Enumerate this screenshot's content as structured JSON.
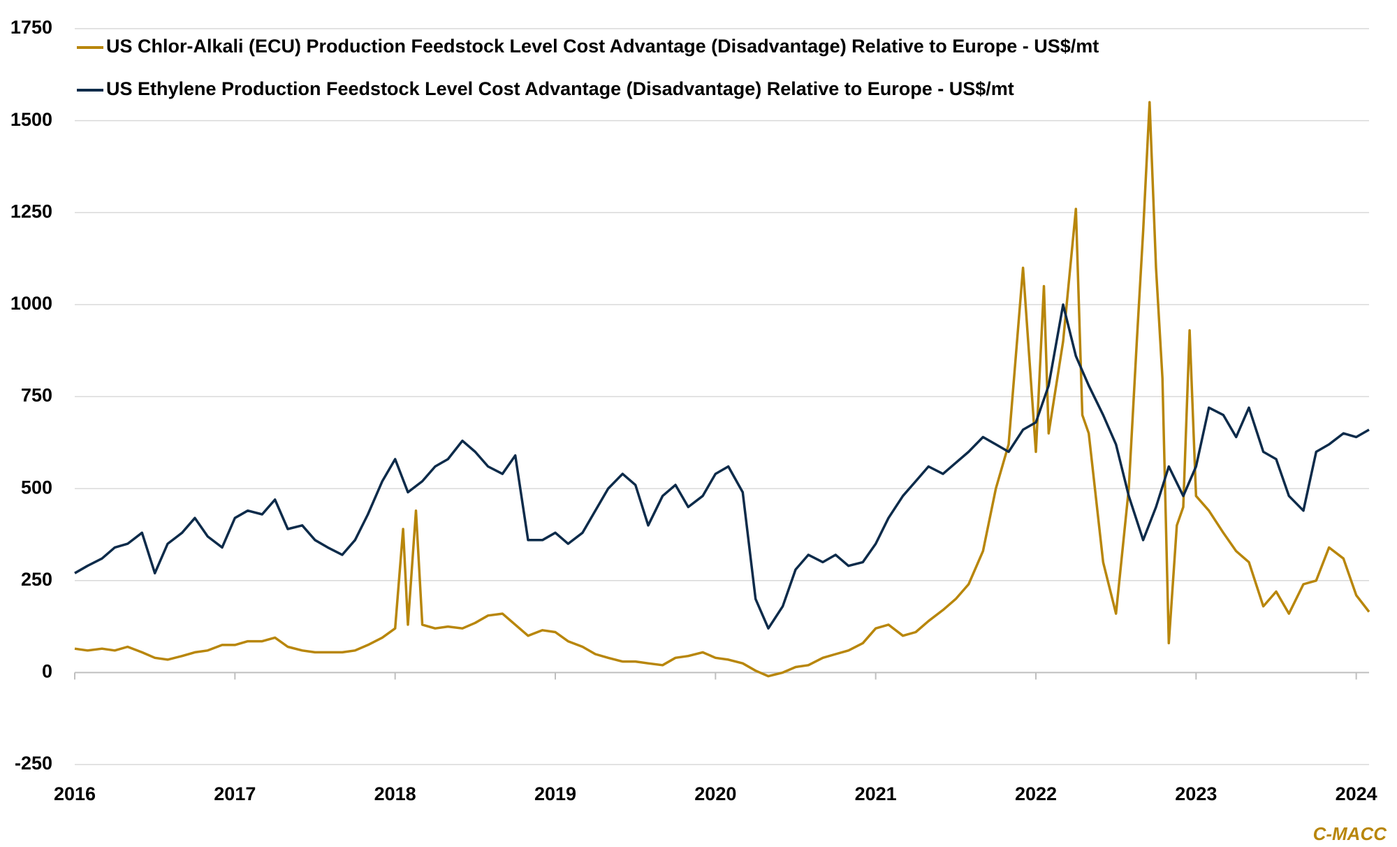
{
  "chart_data": {
    "type": "line",
    "source": "C-MACC",
    "xlim": [
      2016,
      2024.08
    ],
    "xticks": [
      2016,
      2017,
      2018,
      2019,
      2020,
      2021,
      2022,
      2023,
      2024
    ],
    "ylim": [
      -250,
      1750
    ],
    "yticks": [
      -250,
      0,
      250,
      500,
      750,
      1000,
      1250,
      1500,
      1750
    ],
    "grid": true,
    "legend": "top-left",
    "series": [
      {
        "name": "US Chlor-Alkali (ECU) Production Feedstock Level Cost Advantage (Disadvantage) Relative to Europe - US$/mt",
        "color": "#b8860b",
        "x": [
          2016.0,
          2016.08,
          2016.17,
          2016.25,
          2016.33,
          2016.42,
          2016.5,
          2016.58,
          2016.67,
          2016.75,
          2016.83,
          2016.92,
          2017.0,
          2017.08,
          2017.17,
          2017.25,
          2017.33,
          2017.42,
          2017.5,
          2017.58,
          2017.67,
          2017.75,
          2017.83,
          2017.92,
          2018.0,
          2018.05,
          2018.08,
          2018.13,
          2018.17,
          2018.25,
          2018.33,
          2018.42,
          2018.5,
          2018.58,
          2018.67,
          2018.75,
          2018.83,
          2018.92,
          2019.0,
          2019.08,
          2019.17,
          2019.25,
          2019.33,
          2019.42,
          2019.5,
          2019.58,
          2019.67,
          2019.75,
          2019.83,
          2019.92,
          2020.0,
          2020.08,
          2020.17,
          2020.25,
          2020.33,
          2020.42,
          2020.5,
          2020.58,
          2020.67,
          2020.75,
          2020.83,
          2020.92,
          2021.0,
          2021.08,
          2021.17,
          2021.25,
          2021.33,
          2021.42,
          2021.5,
          2021.58,
          2021.67,
          2021.75,
          2021.83,
          2021.92,
          2022.0,
          2022.05,
          2022.08,
          2022.17,
          2022.25,
          2022.29,
          2022.33,
          2022.42,
          2022.5,
          2022.58,
          2022.63,
          2022.67,
          2022.71,
          2022.75,
          2022.79,
          2022.83,
          2022.88,
          2022.92,
          2022.96,
          2023.0,
          2023.08,
          2023.17,
          2023.25,
          2023.33,
          2023.42,
          2023.5,
          2023.58,
          2023.67,
          2023.75,
          2023.83,
          2023.92,
          2024.0,
          2024.08
        ],
        "values": [
          65,
          60,
          65,
          60,
          70,
          55,
          40,
          35,
          45,
          55,
          60,
          75,
          75,
          85,
          85,
          95,
          70,
          60,
          55,
          55,
          55,
          60,
          75,
          95,
          120,
          390,
          130,
          440,
          130,
          120,
          125,
          120,
          135,
          155,
          160,
          130,
          100,
          115,
          110,
          85,
          70,
          50,
          40,
          30,
          30,
          25,
          20,
          40,
          45,
          55,
          40,
          35,
          25,
          5,
          -10,
          0,
          15,
          20,
          40,
          50,
          60,
          80,
          120,
          130,
          100,
          110,
          140,
          170,
          200,
          240,
          330,
          500,
          620,
          1100,
          600,
          1050,
          650,
          900,
          1260,
          700,
          650,
          300,
          160,
          500,
          900,
          1200,
          1550,
          1100,
          800,
          80,
          400,
          450,
          930,
          480,
          440,
          380,
          330,
          300,
          180,
          220,
          160,
          240,
          250,
          340,
          310,
          210,
          165
        ]
      },
      {
        "name": "US Ethylene Production Feedstock Level Cost Advantage (Disadvantage) Relative to Europe - US$/mt",
        "color": "#0d2b4a",
        "x": [
          2016.0,
          2016.08,
          2016.17,
          2016.25,
          2016.33,
          2016.42,
          2016.5,
          2016.58,
          2016.67,
          2016.75,
          2016.83,
          2016.92,
          2017.0,
          2017.08,
          2017.17,
          2017.25,
          2017.33,
          2017.42,
          2017.5,
          2017.58,
          2017.67,
          2017.75,
          2017.83,
          2017.92,
          2018.0,
          2018.08,
          2018.17,
          2018.25,
          2018.33,
          2018.42,
          2018.5,
          2018.58,
          2018.67,
          2018.75,
          2018.83,
          2018.92,
          2019.0,
          2019.08,
          2019.17,
          2019.25,
          2019.33,
          2019.42,
          2019.5,
          2019.58,
          2019.67,
          2019.75,
          2019.83,
          2019.92,
          2020.0,
          2020.08,
          2020.17,
          2020.25,
          2020.33,
          2020.42,
          2020.5,
          2020.58,
          2020.67,
          2020.75,
          2020.83,
          2020.92,
          2021.0,
          2021.08,
          2021.17,
          2021.25,
          2021.33,
          2021.42,
          2021.5,
          2021.58,
          2021.67,
          2021.75,
          2021.83,
          2021.92,
          2022.0,
          2022.08,
          2022.17,
          2022.25,
          2022.33,
          2022.42,
          2022.5,
          2022.58,
          2022.67,
          2022.75,
          2022.83,
          2022.92,
          2023.0,
          2023.08,
          2023.17,
          2023.25,
          2023.33,
          2023.42,
          2023.5,
          2023.58,
          2023.67,
          2023.75,
          2023.83,
          2023.92,
          2024.0,
          2024.08
        ],
        "values": [
          270,
          290,
          310,
          340,
          350,
          380,
          270,
          350,
          380,
          420,
          370,
          340,
          420,
          440,
          430,
          470,
          390,
          400,
          360,
          340,
          320,
          360,
          430,
          520,
          580,
          490,
          520,
          560,
          580,
          630,
          600,
          560,
          540,
          590,
          360,
          360,
          380,
          350,
          380,
          440,
          500,
          540,
          510,
          400,
          480,
          510,
          450,
          480,
          540,
          560,
          490,
          200,
          120,
          180,
          280,
          320,
          300,
          320,
          290,
          300,
          350,
          420,
          480,
          520,
          560,
          540,
          570,
          600,
          640,
          620,
          600,
          660,
          680,
          780,
          1000,
          860,
          780,
          700,
          620,
          480,
          360,
          450,
          560,
          480,
          560,
          720,
          700,
          640,
          720,
          600,
          580,
          480,
          440,
          600,
          620,
          650,
          640,
          660
        ]
      }
    ]
  }
}
